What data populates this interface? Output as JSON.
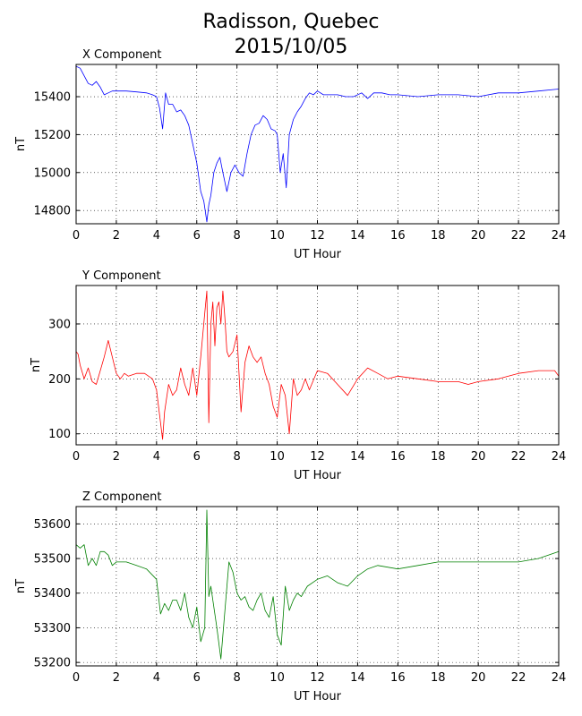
{
  "figure": {
    "title_line1": "Radisson, Quebec",
    "title_line2": "2015/10/05"
  },
  "chart_data": [
    {
      "type": "line",
      "title": "X Component",
      "xlabel": "UT Hour",
      "ylabel": "nT",
      "xlim": [
        0,
        24
      ],
      "ylim": [
        14730,
        15570
      ],
      "xticks": [
        0,
        2,
        4,
        6,
        8,
        10,
        12,
        14,
        16,
        18,
        20,
        22,
        24
      ],
      "yticks": [
        14800,
        15000,
        15200,
        15400
      ],
      "grid": true,
      "color": "#0000ff",
      "series": [
        {
          "x": [
            0,
            0.2,
            0.4,
            0.6,
            0.8,
            1.0,
            1.2,
            1.4,
            1.6,
            1.8,
            2.0,
            2.5,
            3.0,
            3.5,
            3.8,
            4.0,
            4.15,
            4.3,
            4.45,
            4.6,
            4.8,
            5.0,
            5.2,
            5.4,
            5.6,
            5.8,
            6.0,
            6.2,
            6.35,
            6.5,
            6.6,
            6.7,
            6.85,
            7.0,
            7.15,
            7.3,
            7.5,
            7.7,
            7.9,
            8.1,
            8.3,
            8.5,
            8.7,
            8.9,
            9.1,
            9.3,
            9.5,
            9.7,
            9.9,
            10.0,
            10.15,
            10.3,
            10.45,
            10.6,
            10.8,
            11.0,
            11.2,
            11.4,
            11.6,
            11.8,
            12.0,
            12.3,
            12.6,
            13.0,
            13.4,
            13.8,
            14.2,
            14.5,
            14.8,
            15.2,
            15.6,
            16,
            17,
            18,
            19,
            20,
            21,
            22,
            23,
            24
          ],
          "y": [
            15560,
            15550,
            15510,
            15470,
            15460,
            15480,
            15450,
            15410,
            15420,
            15430,
            15430,
            15430,
            15425,
            15420,
            15410,
            15400,
            15340,
            15230,
            15420,
            15360,
            15360,
            15320,
            15330,
            15300,
            15250,
            15150,
            15050,
            14900,
            14850,
            14740,
            14830,
            14880,
            15000,
            15050,
            15080,
            15000,
            14900,
            15000,
            15040,
            15000,
            14980,
            15100,
            15200,
            15250,
            15260,
            15300,
            15280,
            15230,
            15220,
            15200,
            15000,
            15100,
            14920,
            15200,
            15280,
            15320,
            15350,
            15390,
            15420,
            15410,
            15430,
            15410,
            15410,
            15410,
            15400,
            15400,
            15420,
            15390,
            15420,
            15420,
            15410,
            15410,
            15400,
            15410,
            15410,
            15400,
            15420,
            15420,
            15430,
            15440
          ]
        }
      ]
    },
    {
      "type": "line",
      "title": "Y Component",
      "xlabel": "UT Hour",
      "ylabel": "nT",
      "xlim": [
        0,
        24
      ],
      "ylim": [
        80,
        370
      ],
      "xticks": [
        0,
        2,
        4,
        6,
        8,
        10,
        12,
        14,
        16,
        18,
        20,
        22,
        24
      ],
      "yticks": [
        100,
        200,
        300
      ],
      "grid": true,
      "color": "#ff0000",
      "series": [
        {
          "x": [
            0,
            0.1,
            0.2,
            0.4,
            0.6,
            0.8,
            1.0,
            1.2,
            1.4,
            1.6,
            1.8,
            2.0,
            2.2,
            2.4,
            2.6,
            3.0,
            3.4,
            3.8,
            4.0,
            4.2,
            4.3,
            4.4,
            4.6,
            4.8,
            5.0,
            5.2,
            5.4,
            5.6,
            5.8,
            6.0,
            6.2,
            6.4,
            6.5,
            6.6,
            6.7,
            6.8,
            6.9,
            7.0,
            7.1,
            7.2,
            7.3,
            7.4,
            7.5,
            7.6,
            7.8,
            8.0,
            8.2,
            8.4,
            8.6,
            8.8,
            9.0,
            9.2,
            9.4,
            9.6,
            9.8,
            10.0,
            10.2,
            10.4,
            10.6,
            10.8,
            11.0,
            11.2,
            11.4,
            11.6,
            12.0,
            12.5,
            13.0,
            13.5,
            14.0,
            14.5,
            15.0,
            15.5,
            16,
            17,
            18,
            19,
            19.5,
            20,
            21,
            22,
            23,
            23.8,
            24
          ],
          "y": [
            250,
            245,
            225,
            200,
            220,
            195,
            190,
            215,
            240,
            270,
            240,
            210,
            200,
            210,
            205,
            210,
            210,
            200,
            180,
            120,
            90,
            140,
            190,
            170,
            180,
            220,
            190,
            170,
            220,
            170,
            240,
            320,
            360,
            120,
            300,
            340,
            260,
            330,
            340,
            300,
            360,
            310,
            250,
            240,
            250,
            280,
            140,
            230,
            260,
            240,
            230,
            240,
            210,
            190,
            150,
            130,
            190,
            170,
            100,
            200,
            170,
            180,
            200,
            180,
            215,
            210,
            190,
            170,
            200,
            220,
            210,
            200,
            205,
            200,
            195,
            195,
            190,
            195,
            200,
            210,
            215,
            215,
            205
          ]
        }
      ]
    },
    {
      "type": "line",
      "title": "Z Component",
      "xlabel": "UT Hour",
      "ylabel": "nT",
      "xlim": [
        0,
        24
      ],
      "ylim": [
        53190,
        53650
      ],
      "xticks": [
        0,
        2,
        4,
        6,
        8,
        10,
        12,
        14,
        16,
        18,
        20,
        22,
        24
      ],
      "yticks": [
        53200,
        53300,
        53400,
        53500,
        53600
      ],
      "grid": true,
      "color": "#008000",
      "series": [
        {
          "x": [
            0,
            0.2,
            0.4,
            0.6,
            0.8,
            1.0,
            1.2,
            1.4,
            1.6,
            1.8,
            2.0,
            2.5,
            3.0,
            3.5,
            4.0,
            4.2,
            4.4,
            4.6,
            4.8,
            5.0,
            5.2,
            5.4,
            5.6,
            5.8,
            6.0,
            6.2,
            6.4,
            6.5,
            6.6,
            6.7,
            6.8,
            7.0,
            7.2,
            7.4,
            7.6,
            7.8,
            8.0,
            8.2,
            8.4,
            8.6,
            8.8,
            9.0,
            9.2,
            9.4,
            9.6,
            9.8,
            10.0,
            10.2,
            10.4,
            10.6,
            10.8,
            11.0,
            11.2,
            11.5,
            12.0,
            12.5,
            13.0,
            13.5,
            14.0,
            14.5,
            15.0,
            16,
            17,
            18,
            19,
            20,
            21,
            22,
            23,
            24
          ],
          "y": [
            53540,
            53530,
            53540,
            53480,
            53500,
            53480,
            53520,
            53520,
            53510,
            53480,
            53490,
            53490,
            53480,
            53470,
            53440,
            53340,
            53370,
            53350,
            53380,
            53380,
            53350,
            53400,
            53330,
            53300,
            53360,
            53260,
            53300,
            53640,
            53390,
            53420,
            53380,
            53300,
            53210,
            53350,
            53490,
            53460,
            53400,
            53380,
            53390,
            53360,
            53350,
            53380,
            53400,
            53350,
            53330,
            53390,
            53280,
            53250,
            53420,
            53350,
            53380,
            53400,
            53390,
            53420,
            53440,
            53450,
            53430,
            53420,
            53450,
            53470,
            53480,
            53470,
            53480,
            53490,
            53490,
            53490,
            53490,
            53490,
            53500,
            53520
          ]
        }
      ]
    }
  ]
}
